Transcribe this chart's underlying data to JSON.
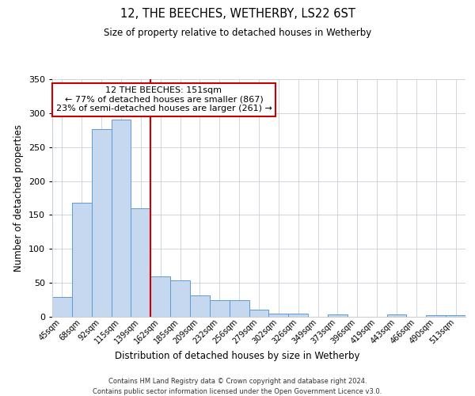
{
  "title": "12, THE BEECHES, WETHERBY, LS22 6ST",
  "subtitle": "Size of property relative to detached houses in Wetherby",
  "xlabel": "Distribution of detached houses by size in Wetherby",
  "ylabel": "Number of detached properties",
  "bar_labels": [
    "45sqm",
    "68sqm",
    "92sqm",
    "115sqm",
    "139sqm",
    "162sqm",
    "185sqm",
    "209sqm",
    "232sqm",
    "256sqm",
    "279sqm",
    "302sqm",
    "326sqm",
    "349sqm",
    "373sqm",
    "396sqm",
    "419sqm",
    "443sqm",
    "466sqm",
    "490sqm",
    "513sqm"
  ],
  "bar_values": [
    29,
    168,
    277,
    291,
    160,
    59,
    54,
    32,
    25,
    25,
    10,
    5,
    5,
    0,
    3,
    0,
    0,
    3,
    0,
    2,
    2
  ],
  "bar_color": "#c5d8ef",
  "bar_edge_color": "#5b9bd5",
  "ylim": [
    0,
    350
  ],
  "yticks": [
    0,
    50,
    100,
    150,
    200,
    250,
    300,
    350
  ],
  "vline_color": "#cc0000",
  "annotation_title": "12 THE BEECHES: 151sqm",
  "annotation_line1": "← 77% of detached houses are smaller (867)",
  "annotation_line2": "23% of semi-detached houses are larger (261) →",
  "annotation_box_color": "#ffffff",
  "annotation_box_edge_color": "#cc0000",
  "footer1": "Contains HM Land Registry data © Crown copyright and database right 2024.",
  "footer2": "Contains public sector information licensed under the Open Government Licence v3.0.",
  "bg_color": "#ffffff",
  "grid_color": "#c8d0d8"
}
